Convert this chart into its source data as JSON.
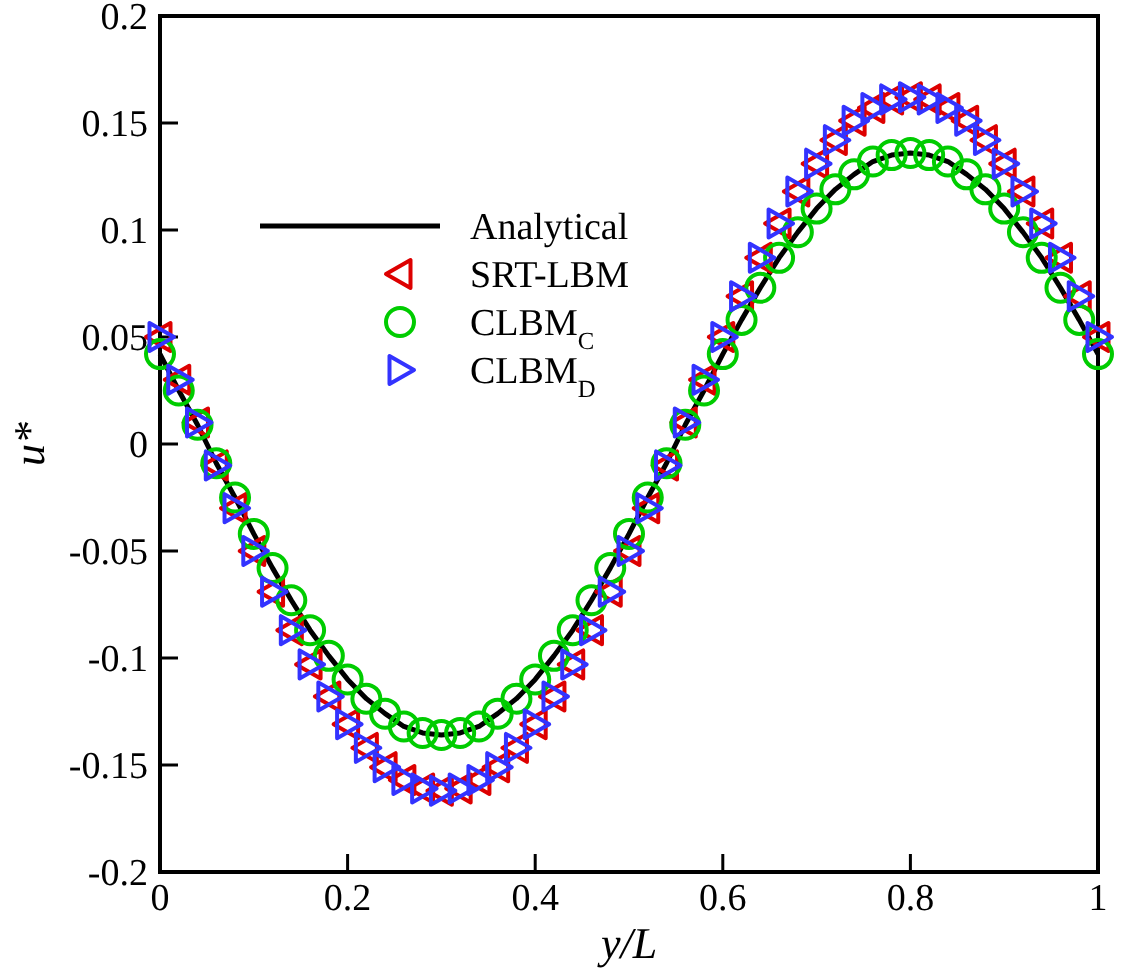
{
  "chart_data": {
    "type": "scatter",
    "xlabel": "y/L",
    "ylabel": "u*",
    "xlim": [
      0,
      1
    ],
    "ylim": [
      -0.2,
      0.2
    ],
    "xticks": [
      0,
      0.2,
      0.4,
      0.6,
      0.8,
      1
    ],
    "yticks": [
      -0.2,
      -0.15,
      -0.1,
      -0.05,
      0,
      0.05,
      0.1,
      0.15,
      0.2
    ],
    "grid": false,
    "legend": "top left",
    "x": [
      0,
      0.02,
      0.04,
      0.06,
      0.08,
      0.1,
      0.12,
      0.14,
      0.16,
      0.18,
      0.2,
      0.22,
      0.24,
      0.26,
      0.28,
      0.3,
      0.32,
      0.34,
      0.36,
      0.38,
      0.4,
      0.42,
      0.44,
      0.46,
      0.48,
      0.5,
      0.52,
      0.54,
      0.56,
      0.58,
      0.6,
      0.62,
      0.64,
      0.66,
      0.68,
      0.7,
      0.72,
      0.74,
      0.76,
      0.78,
      0.8,
      0.82,
      0.84,
      0.86,
      0.88,
      0.9,
      0.92,
      0.94,
      0.96,
      0.98,
      1
    ],
    "series": [
      {
        "name": "Analytical",
        "type": "line",
        "marker": "none",
        "line_style": "solid",
        "color": "#000000",
        "values": [
          0.042,
          0.025,
          0.009,
          -0.009,
          -0.025,
          -0.042,
          -0.058,
          -0.073,
          -0.087,
          -0.099,
          -0.11,
          -0.119,
          -0.126,
          -0.132,
          -0.135,
          -0.136,
          -0.135,
          -0.132,
          -0.126,
          -0.119,
          -0.11,
          -0.099,
          -0.087,
          -0.073,
          -0.058,
          -0.042,
          -0.025,
          -0.009,
          0.009,
          0.025,
          0.042,
          0.058,
          0.073,
          0.087,
          0.099,
          0.11,
          0.119,
          0.126,
          0.132,
          0.135,
          0.136,
          0.135,
          0.132,
          0.126,
          0.119,
          0.11,
          0.099,
          0.087,
          0.073,
          0.058,
          0.042
        ]
      },
      {
        "name": "SRT-LBM",
        "marker": "triangle",
        "color": "#dd0000",
        "values": [
          0.05,
          0.03,
          0.01,
          -0.01,
          -0.03,
          -0.05,
          -0.069,
          -0.087,
          -0.103,
          -0.118,
          -0.131,
          -0.142,
          -0.151,
          -0.157,
          -0.161,
          -0.162,
          -0.161,
          -0.157,
          -0.151,
          -0.142,
          -0.131,
          -0.118,
          -0.103,
          -0.087,
          -0.069,
          -0.05,
          -0.03,
          -0.01,
          0.01,
          0.03,
          0.05,
          0.069,
          0.087,
          0.103,
          0.118,
          0.131,
          0.142,
          0.151,
          0.157,
          0.161,
          0.162,
          0.161,
          0.157,
          0.151,
          0.142,
          0.131,
          0.118,
          0.103,
          0.087,
          0.069,
          0.05
        ]
      },
      {
        "name": "CLBM$_{C}$",
        "marker": "circle",
        "color": "#00cc00",
        "values": [
          0.042,
          0.025,
          0.009,
          -0.009,
          -0.025,
          -0.042,
          -0.058,
          -0.073,
          -0.087,
          -0.099,
          -0.11,
          -0.119,
          -0.126,
          -0.132,
          -0.135,
          -0.136,
          -0.135,
          -0.132,
          -0.126,
          -0.119,
          -0.11,
          -0.099,
          -0.087,
          -0.073,
          -0.058,
          -0.042,
          -0.025,
          -0.009,
          0.009,
          0.025,
          0.042,
          0.058,
          0.073,
          0.087,
          0.099,
          0.11,
          0.119,
          0.126,
          0.132,
          0.135,
          0.136,
          0.135,
          0.132,
          0.126,
          0.119,
          0.11,
          0.099,
          0.087,
          0.073,
          0.058,
          0.042
        ]
      },
      {
        "name": "CLBM$_{D}$",
        "marker": "triangle",
        "color": "#3333ff",
        "values": [
          0.05,
          0.03,
          0.01,
          -0.01,
          -0.03,
          -0.05,
          -0.069,
          -0.087,
          -0.103,
          -0.118,
          -0.131,
          -0.142,
          -0.151,
          -0.157,
          -0.161,
          -0.162,
          -0.161,
          -0.157,
          -0.151,
          -0.142,
          -0.131,
          -0.118,
          -0.103,
          -0.087,
          -0.069,
          -0.05,
          -0.03,
          -0.01,
          0.01,
          0.03,
          0.05,
          0.069,
          0.087,
          0.103,
          0.118,
          0.131,
          0.142,
          0.151,
          0.157,
          0.161,
          0.162,
          0.161,
          0.157,
          0.151,
          0.142,
          0.131,
          0.118,
          0.103,
          0.087,
          0.069,
          0.05
        ]
      }
    ]
  }
}
